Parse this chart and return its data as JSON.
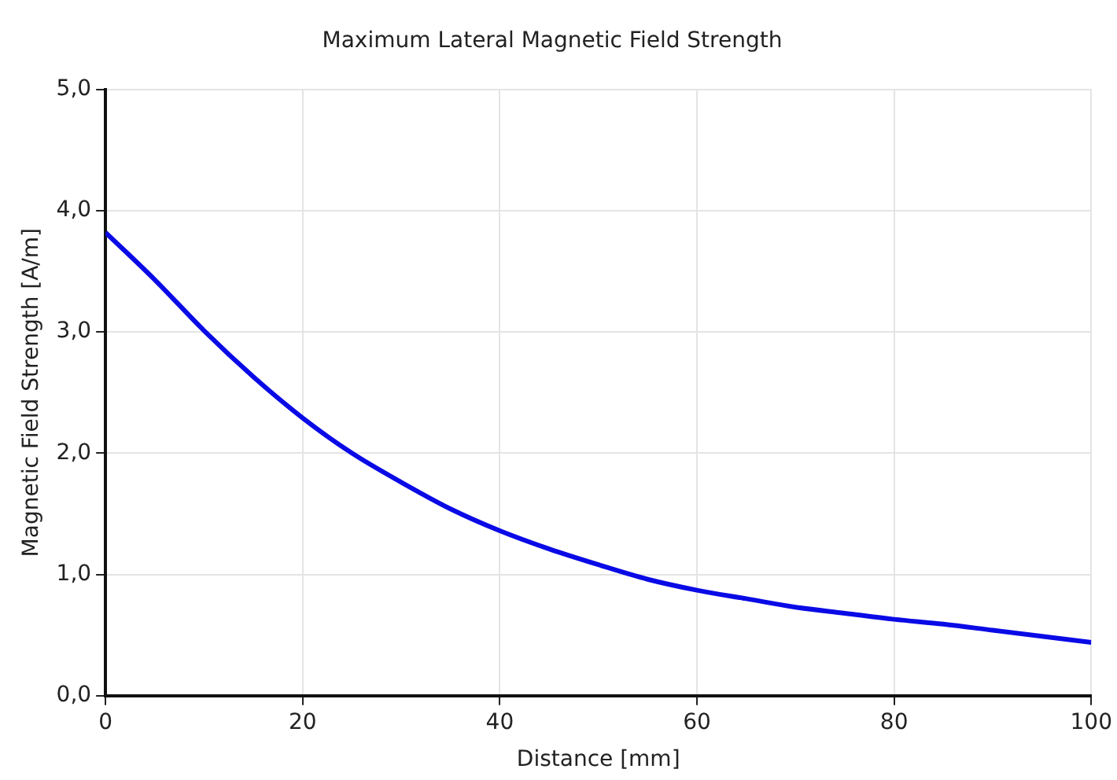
{
  "chart_data": {
    "type": "line",
    "title": "Maximum Lateral Magnetic Field Strength",
    "xlabel": "Distance [mm]",
    "ylabel": "Magnetic Field Strength [A/m]",
    "x": [
      0,
      5,
      10,
      15,
      20,
      25,
      30,
      35,
      40,
      45,
      50,
      55,
      60,
      65,
      70,
      75,
      80,
      85,
      90,
      95,
      100
    ],
    "series": [
      {
        "color": "#0a0ae6",
        "values": [
          3.82,
          3.43,
          3.01,
          2.63,
          2.29,
          2.0,
          1.76,
          1.54,
          1.36,
          1.21,
          1.08,
          0.96,
          0.87,
          0.8,
          0.73,
          0.68,
          0.63,
          0.59,
          0.54,
          0.49,
          0.44
        ]
      }
    ],
    "xlim": [
      0,
      100
    ],
    "xticks": [
      0,
      20,
      40,
      60,
      80,
      100
    ],
    "ylim": [
      0,
      5
    ],
    "yticks": [
      {
        "value": 0,
        "label": "0,0"
      },
      {
        "value": 1,
        "label": "1,0"
      },
      {
        "value": 2,
        "label": "2,0"
      },
      {
        "value": 3,
        "label": "3,0"
      },
      {
        "value": 4,
        "label": "4,0"
      },
      {
        "value": 5,
        "label": "5,0"
      }
    ],
    "grid": true,
    "legend": false,
    "marker": "none",
    "line_style": "solid"
  }
}
